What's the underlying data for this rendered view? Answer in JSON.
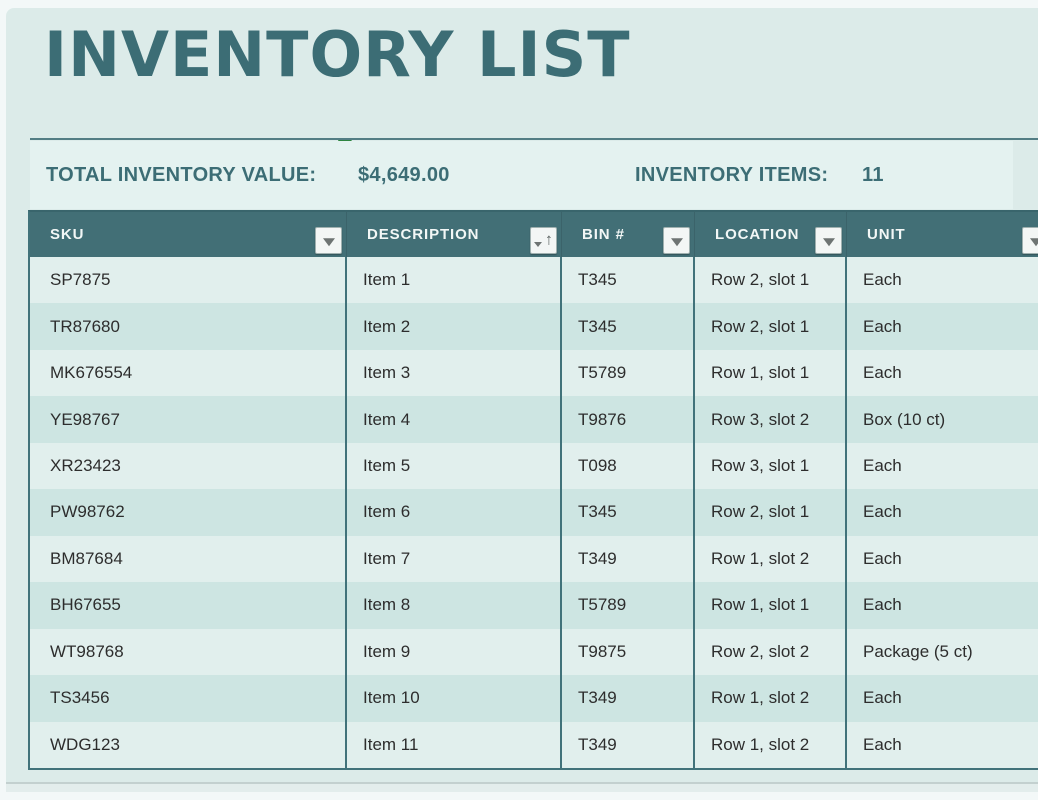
{
  "header": {
    "title": "INVENTORY LIST"
  },
  "summary": {
    "total_label": "TOTAL INVENTORY VALUE:",
    "total_value": "$4,649.00",
    "items_label": "INVENTORY ITEMS:",
    "items_value": "11"
  },
  "table": {
    "column_keys": [
      "sku",
      "description",
      "bin",
      "location",
      "unit"
    ],
    "columns": [
      {
        "label": "SKU",
        "icon": "filter-dropdown-icon"
      },
      {
        "label": "DESCRIPTION",
        "icon": "filter-sort-asc-icon"
      },
      {
        "label": "BIN #",
        "icon": "filter-dropdown-icon"
      },
      {
        "label": "LOCATION",
        "icon": "filter-dropdown-icon"
      },
      {
        "label": "UNIT",
        "icon": "filter-dropdown-icon"
      }
    ],
    "rows": [
      [
        "SP7875",
        "Item 1",
        "T345",
        "Row 2, slot 1",
        "Each"
      ],
      [
        "TR87680",
        "Item 2",
        "T345",
        "Row 2, slot 1",
        "Each"
      ],
      [
        "MK676554",
        "Item 3",
        "T5789",
        "Row 1, slot 1",
        "Each"
      ],
      [
        "YE98767",
        "Item 4",
        "T9876",
        "Row 3, slot 2",
        "Box (10 ct)"
      ],
      [
        "XR23423",
        "Item 5",
        "T098",
        "Row 3, slot 1",
        "Each"
      ],
      [
        "PW98762",
        "Item 6",
        "T345",
        "Row 2, slot 1",
        "Each"
      ],
      [
        "BM87684",
        "Item 7",
        "T349",
        "Row 1, slot 2",
        "Each"
      ],
      [
        "BH67655",
        "Item 8",
        "T5789",
        "Row 1, slot 1",
        "Each"
      ],
      [
        "WT98768",
        "Item 9",
        "T9875",
        "Row 2, slot 2",
        "Package (5 ct)"
      ],
      [
        "TS3456",
        "Item 10",
        "T349",
        "Row 1, slot 2",
        "Each"
      ],
      [
        "WDG123",
        "Item 11",
        "T349",
        "Row 1, slot 2",
        "Each"
      ]
    ]
  },
  "colors": {
    "accent_teal": "#3c6d75",
    "page_bg": "#dcebe9",
    "band_bg": "#e4f2f0",
    "table_header_bg": "#426f76",
    "row_light": "#e1efed",
    "row_dark": "#cde5e2",
    "border_teal": "#41727a",
    "flag_green": "#2e8540"
  }
}
